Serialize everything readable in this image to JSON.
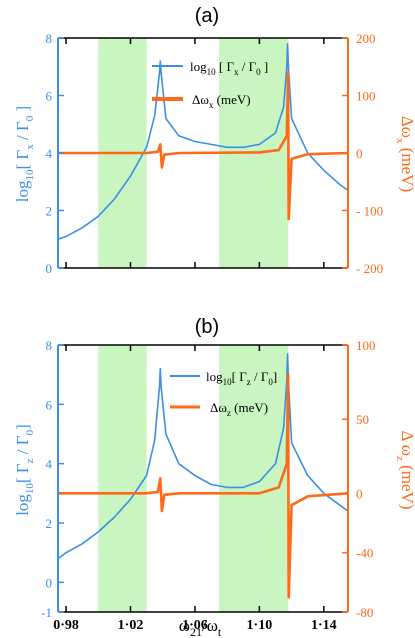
{
  "colors": {
    "blue": "#3d8ee6",
    "orange": "#ff6a1a",
    "band": "#c8f5c0",
    "axis": "#000000"
  },
  "chart_data": [
    {
      "type": "line",
      "panel_label": "(a)",
      "xlim": [
        0.975,
        1.155
      ],
      "x_ticks": [
        0.98,
        1.02,
        1.06,
        1.1,
        1.14
      ],
      "shaded_bands": [
        [
          1.0,
          1.03
        ],
        [
          1.075,
          1.118
        ]
      ],
      "left_axis": {
        "label": "log10[ Γx / Γ0 ]",
        "ylim": [
          0,
          8
        ],
        "ticks": [
          0,
          2,
          4,
          6,
          8
        ],
        "tick_labels": [
          "0",
          "2",
          "4",
          "6",
          "8"
        ]
      },
      "right_axis": {
        "label": "Δωx (meV)",
        "ylim": [
          -200,
          200
        ],
        "ticks": [
          -200,
          -100,
          0,
          100,
          200
        ],
        "tick_labels": [
          "- 200",
          "- 100",
          "0",
          "100",
          "200"
        ]
      },
      "legend": {
        "position": "top-center",
        "entries": [
          "log10 [ Γx / Γ0 ]",
          "Δωx  (meV)"
        ]
      },
      "series": [
        {
          "name": "log10 [ Γx / Γ0 ]",
          "axis": "left",
          "color": "#3d8ee6",
          "x": [
            0.975,
            0.98,
            0.99,
            1.0,
            1.01,
            1.02,
            1.03,
            1.035,
            1.038,
            1.0385,
            1.039,
            1.042,
            1.05,
            1.06,
            1.07,
            1.08,
            1.09,
            1.1,
            1.11,
            1.115,
            1.117,
            1.1175,
            1.118,
            1.12,
            1.13,
            1.14,
            1.15,
            1.155
          ],
          "y": [
            1.0,
            1.1,
            1.4,
            1.8,
            2.4,
            3.2,
            4.2,
            5.3,
            6.8,
            7.2,
            6.8,
            5.2,
            4.6,
            4.4,
            4.3,
            4.2,
            4.2,
            4.3,
            4.7,
            5.6,
            7.0,
            7.8,
            7.0,
            5.2,
            4.0,
            3.4,
            2.9,
            2.7
          ]
        },
        {
          "name": "Δωx  (meV)",
          "axis": "right",
          "color": "#ff6a1a",
          "x": [
            0.975,
            1.03,
            1.037,
            1.0385,
            1.0395,
            1.041,
            1.05,
            1.1,
            1.112,
            1.117,
            1.1178,
            1.1182,
            1.12,
            1.13,
            1.155
          ],
          "y": [
            0,
            0,
            2,
            15,
            -25,
            -3,
            0,
            1,
            5,
            30,
            140,
            -115,
            -10,
            -2,
            0
          ]
        }
      ]
    },
    {
      "type": "line",
      "panel_label": "(b)",
      "xlim": [
        0.975,
        1.155
      ],
      "x_ticks": [
        0.98,
        1.02,
        1.06,
        1.1,
        1.14
      ],
      "x_tick_labels": [
        "0·98",
        "1·02",
        "1·06",
        "1·10",
        "1·14"
      ],
      "xlabel": "ω21/ωt",
      "shaded_bands": [
        [
          1.0,
          1.03
        ],
        [
          1.075,
          1.118
        ]
      ],
      "left_axis": {
        "label": "log10[ Γz / Γ0 ]",
        "ylim": [
          -1,
          8
        ],
        "ticks": [
          -1,
          0,
          2,
          4,
          6,
          8
        ],
        "tick_labels": [
          "-1",
          "0",
          "2",
          "4",
          "6",
          "8"
        ]
      },
      "right_axis": {
        "label": "Δ ωz (meV)",
        "ylim": [
          -80,
          100
        ],
        "ticks": [
          -80,
          -40,
          0,
          50,
          100
        ],
        "tick_labels": [
          "-80",
          "-40",
          "0",
          "50",
          "100"
        ]
      },
      "legend": {
        "position": "top-center",
        "entries": [
          "log10[ Γz / Γ0 ]",
          "Δωz  (meV)"
        ]
      },
      "series": [
        {
          "name": "log10[ Γz / Γ0 ]",
          "axis": "left",
          "color": "#3d8ee6",
          "x": [
            0.975,
            0.98,
            0.99,
            1.0,
            1.01,
            1.02,
            1.03,
            1.035,
            1.038,
            1.0385,
            1.039,
            1.042,
            1.05,
            1.06,
            1.07,
            1.08,
            1.09,
            1.1,
            1.11,
            1.115,
            1.117,
            1.1175,
            1.118,
            1.12,
            1.13,
            1.14,
            1.15,
            1.155
          ],
          "y": [
            0.8,
            1.0,
            1.3,
            1.7,
            2.2,
            2.8,
            3.6,
            4.8,
            6.6,
            7.2,
            6.6,
            5.0,
            4.0,
            3.6,
            3.3,
            3.2,
            3.2,
            3.4,
            4.0,
            5.2,
            6.8,
            7.7,
            6.8,
            4.7,
            3.6,
            3.0,
            2.6,
            2.4
          ]
        },
        {
          "name": "Δωz  (meV)",
          "axis": "right",
          "color": "#ff6a1a",
          "x": [
            0.975,
            1.03,
            1.037,
            1.0385,
            1.0395,
            1.041,
            1.05,
            1.1,
            1.112,
            1.117,
            1.1178,
            1.1182,
            1.12,
            1.13,
            1.155
          ],
          "y": [
            0,
            0,
            1,
            10,
            -12,
            -1,
            0,
            0,
            4,
            20,
            80,
            -70,
            -8,
            -2,
            0
          ]
        }
      ]
    }
  ]
}
